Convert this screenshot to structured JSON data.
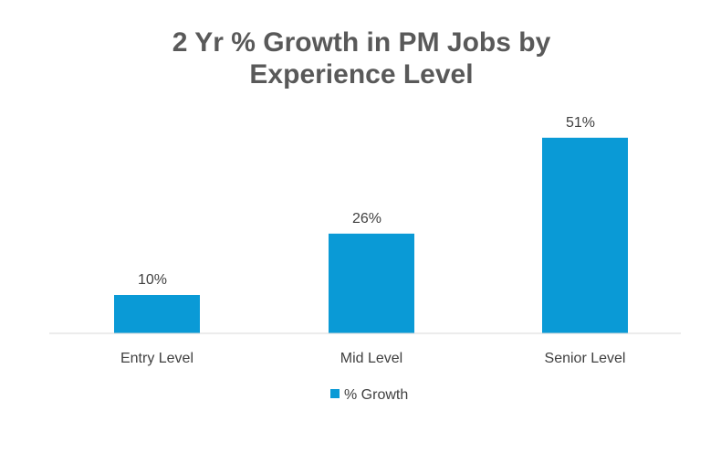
{
  "chart_data": {
    "type": "bar",
    "title_lines": [
      "2 Yr % Growth in PM Jobs by",
      "Experience Level"
    ],
    "categories": [
      "Entry Level",
      "Mid Level",
      "Senior Level"
    ],
    "series": [
      {
        "name": "% Growth",
        "values": [
          10,
          26,
          51
        ],
        "labels": [
          "10%",
          "26%",
          "51%"
        ],
        "color": "#0a9ad6"
      }
    ],
    "ylim": [
      0,
      55
    ],
    "grid": false,
    "legend": "bottom"
  }
}
